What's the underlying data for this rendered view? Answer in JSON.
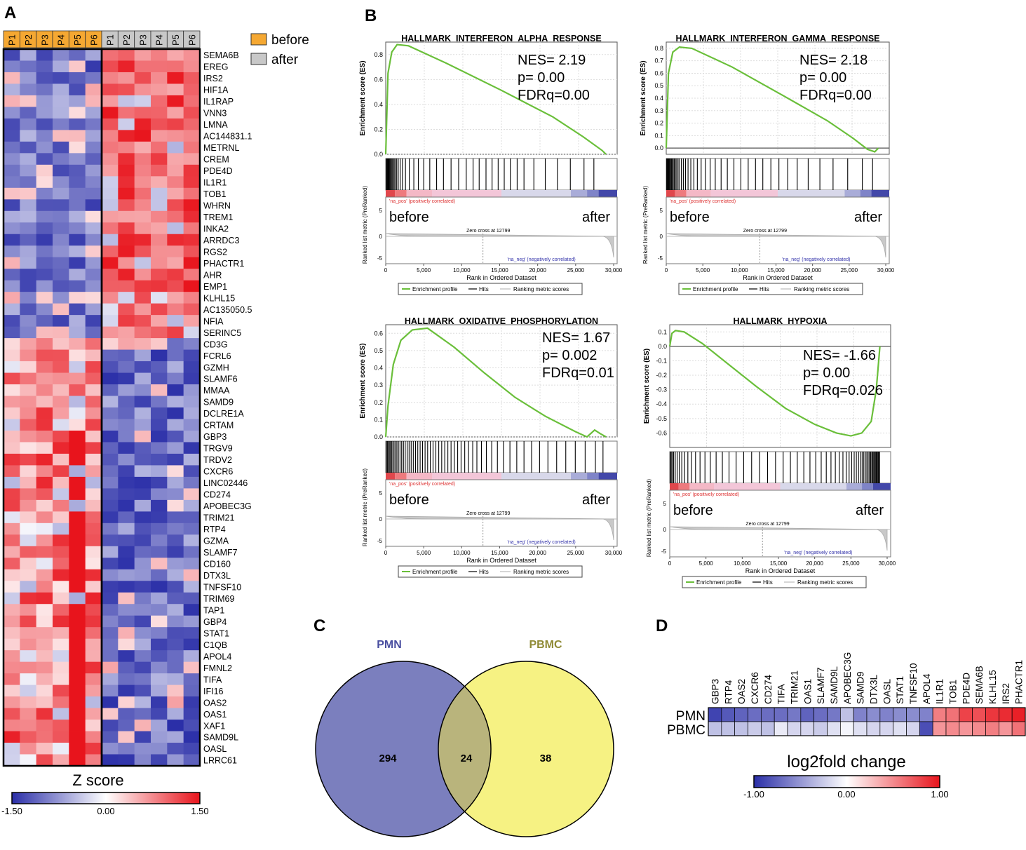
{
  "panel_labels": {
    "a": "A",
    "b": "B",
    "c": "C",
    "d": "D"
  },
  "colors": {
    "before": "#f5a832",
    "after": "#c8c8c8",
    "low": "#2b2fa8",
    "mid": "#ffffff",
    "high": "#e8141c",
    "gsea_line": "#6abf3a",
    "pmn": "#7b7fbe",
    "pbmc": "#f6f283",
    "overlap": "#b9b47c",
    "pmn_text": "#4a4fa0",
    "pbmc_text": "#8f8a35"
  },
  "chart_data": [
    {
      "type": "heatmap",
      "id": "A",
      "groups": [
        {
          "name": "before",
          "samples": [
            "P1",
            "P2",
            "P3",
            "P4",
            "P5",
            "P6"
          ]
        },
        {
          "name": "after",
          "samples": [
            "P1",
            "P2",
            "P3",
            "P4",
            "P5",
            "P6"
          ]
        }
      ],
      "legend_labels": [
        "before",
        "after"
      ],
      "genes": [
        "SEMA6B",
        "EREG",
        "IRS2",
        "HIF1A",
        "IL1RAP",
        "VNN3",
        "LMNA",
        "AC144831.1",
        "METRNL",
        "CREM",
        "PDE4D",
        "IL1R1",
        "TOB1",
        "WHRN",
        "TREM1",
        "INKA2",
        "ARRDC3",
        "RGS2",
        "PHACTR1",
        "AHR",
        "EMP1",
        "KLHL15",
        "AC135050.5",
        "NFIA",
        "SERINC5",
        "CD3G",
        "FCRL6",
        "GZMH",
        "SLAMF6",
        "MMAA",
        "SAMD9",
        "DCLRE1A",
        "CRTAM",
        "GBP3",
        "TRGV9",
        "TRDV2",
        "CXCR6",
        "LINC02446",
        "CD274",
        "APOBEC3G",
        "TRIM21",
        "RTP4",
        "GZMA",
        "SLAMF7",
        "CD160",
        "DTX3L",
        "TNFSF10",
        "TRIM69",
        "TAP1",
        "GBP4",
        "STAT1",
        "C1QB",
        "APOL4",
        "FMNL2",
        "TIFA",
        "IFI16",
        "OAS2",
        "OAS1",
        "XAF1",
        "SAMD9L",
        "OASL",
        "LRRC61"
      ],
      "n_up_after": 25,
      "colorbar": {
        "title": "Z score",
        "min": -1.5,
        "max": 1.5,
        "ticks": [
          "-1.50",
          "0.00",
          "1.50"
        ]
      }
    },
    {
      "type": "line",
      "id": "B1",
      "title": "HALLMARK_INTERFERON_ALPHA_RESPONSE",
      "stats": [
        "NES= 2.19",
        "p= 0.00",
        "FDRq=0.00"
      ],
      "ylabel": "Enrichment score (ES)",
      "ylim": [
        0,
        0.9
      ],
      "yticks": [
        "0.0",
        "0.2",
        "0.4",
        "0.6",
        "0.8"
      ],
      "curve": {
        "x": [
          0,
          300,
          800,
          1500,
          3000,
          8000,
          15000,
          22000,
          26000,
          28500,
          29000
        ],
        "y": [
          0,
          0.65,
          0.82,
          0.88,
          0.87,
          0.73,
          0.52,
          0.3,
          0.14,
          0.03,
          0.0
        ]
      },
      "hits": [
        80,
        160,
        240,
        330,
        420,
        520,
        620,
        730,
        850,
        980,
        1120,
        1280,
        1450,
        1650,
        1900,
        2200,
        2600,
        3100,
        3700,
        4300,
        5000,
        5800,
        6700,
        7600,
        8600,
        9600,
        10600,
        11500,
        12300,
        13200,
        14000,
        14800,
        15600,
        16400,
        17300,
        18200,
        19500,
        21000,
        22600,
        24300,
        26100,
        27400
      ],
      "zero_cross": "Zero cross at 12799"
    },
    {
      "type": "line",
      "id": "B2",
      "title": "HALLMARK_INTERFERON_GAMMA_RESPONSE",
      "stats": [
        "NES= 2.18",
        "p= 0.00",
        "FDRq=0.00"
      ],
      "ylabel": "Enrichment score (ES)",
      "ylim": [
        -0.05,
        0.85
      ],
      "yticks": [
        "0.0",
        "0.1",
        "0.2",
        "0.3",
        "0.4",
        "0.5",
        "0.6",
        "0.7",
        "0.8"
      ],
      "curve": {
        "x": [
          0,
          300,
          900,
          1800,
          3500,
          9000,
          16000,
          22000,
          25500,
          27500,
          28500,
          29000
        ],
        "y": [
          0,
          0.6,
          0.77,
          0.81,
          0.8,
          0.65,
          0.42,
          0.22,
          0.08,
          -0.01,
          -0.03,
          0.0
        ]
      },
      "hits": [
        60,
        130,
        210,
        300,
        390,
        490,
        600,
        710,
        830,
        960,
        1100,
        1260,
        1430,
        1620,
        1830,
        2070,
        2340,
        2640,
        2980,
        3360,
        3780,
        4250,
        4770,
        5350,
        6000,
        6700,
        7500,
        8350,
        9250,
        10200,
        11200,
        12200,
        13200,
        14300,
        15400,
        16600,
        17900,
        19400,
        21000,
        22800,
        24800,
        26800,
        28200
      ],
      "zero_cross": "Zero cross at 12799"
    },
    {
      "type": "line",
      "id": "B3",
      "title": "HALLMARK_OXIDATIVE_PHOSPHORYLATION",
      "stats": [
        "NES= 1.67",
        "p= 0.002",
        "FDRq=0.01"
      ],
      "ylabel": "Enrichment score (ES)",
      "ylim": [
        0,
        0.65
      ],
      "yticks": [
        "0.0",
        "0.1",
        "0.2",
        "0.3",
        "0.4",
        "0.5",
        "0.6"
      ],
      "curve": {
        "x": [
          0,
          300,
          1000,
          2000,
          3500,
          5500,
          9000,
          13000,
          17000,
          21000,
          25000,
          26500,
          27500,
          28200,
          29000
        ],
        "y": [
          0,
          0.18,
          0.42,
          0.56,
          0.62,
          0.63,
          0.52,
          0.37,
          0.23,
          0.12,
          0.03,
          0.0,
          0.04,
          0.02,
          0.0
        ]
      },
      "hits": [
        100,
        220,
        350,
        480,
        620,
        770,
        930,
        1100,
        1280,
        1470,
        1670,
        1880,
        2100,
        2330,
        2570,
        2820,
        3080,
        3350,
        3630,
        3920,
        4220,
        4530,
        4850,
        5180,
        5520,
        5870,
        6230,
        6600,
        6980,
        7370,
        7770,
        8180,
        8600,
        9030,
        9470,
        9920,
        10400,
        10900,
        11450,
        12000,
        12600,
        13250,
        13950,
        14700,
        15500,
        16350,
        17250,
        18200,
        19200,
        20250,
        21350,
        22500,
        23700,
        24950,
        26250,
        27600,
        28600
      ],
      "zero_cross": "Zero cross at 12799"
    },
    {
      "type": "line",
      "id": "B4",
      "title": "HALLMARK_HYPOXIA",
      "stats": [
        "NES= -1.66",
        "p= 0.00",
        "FDRq=0.026"
      ],
      "ylabel": "Enrichment score (ES)",
      "ylim": [
        -0.7,
        0.15
      ],
      "yticks": [
        "0.1",
        "0.0",
        "-0.1",
        "-0.2",
        "-0.3",
        "-0.4",
        "-0.5",
        "-0.6"
      ],
      "curve": {
        "x": [
          0,
          300,
          800,
          2000,
          4500,
          8000,
          12000,
          16000,
          20000,
          23000,
          25000,
          26500,
          27800,
          28500,
          29000
        ],
        "y": [
          0,
          0.09,
          0.11,
          0.1,
          0.02,
          -0.12,
          -0.28,
          -0.43,
          -0.54,
          -0.6,
          -0.62,
          -0.6,
          -0.52,
          -0.3,
          0.0
        ]
      },
      "hits": [
        90,
        210,
        360,
        540,
        760,
        1020,
        1320,
        1660,
        2050,
        2500,
        3000,
        3560,
        4180,
        4860,
        5600,
        6400,
        7260,
        8180,
        9160,
        10200,
        11300,
        12400,
        13500,
        14600,
        15650,
        16650,
        17600,
        18500,
        19350,
        20150,
        20900,
        21600,
        22250,
        22850,
        23400,
        23900,
        24350,
        24750,
        25100,
        25450,
        25750,
        26050,
        26300,
        26550,
        26780,
        27000,
        27200,
        27380,
        27560,
        27720,
        27870,
        28010,
        28140,
        28260,
        28380,
        28500,
        28620,
        28740,
        28850,
        28950
      ],
      "zero_cross": "Zero cross at 12799"
    },
    {
      "type": "venn",
      "id": "C",
      "sets": [
        "PMN",
        "PBMC"
      ],
      "values": {
        "PMN_only": 294,
        "overlap": 24,
        "PBMC_only": 38
      }
    },
    {
      "type": "heatmap",
      "id": "D",
      "rows": [
        "PMN",
        "PBMC"
      ],
      "columns": [
        "GBP3",
        "RTP4",
        "OAS2",
        "CXCR6",
        "CD274",
        "TIFA",
        "TRIM21",
        "OAS1",
        "SLAMF7",
        "SAMD9L",
        "APOBEC3G",
        "SAMD9",
        "DTX3L",
        "OASL",
        "STAT1",
        "TNFSF10",
        "APOL4",
        "IL1R1",
        "TOB1",
        "PDE4D",
        "SEMA6B",
        "KLHL15",
        "IRS2",
        "PHACTR1"
      ],
      "values": [
        [
          -0.9,
          -0.8,
          -0.75,
          -0.7,
          -0.7,
          -0.7,
          -0.65,
          -0.75,
          -0.7,
          -0.65,
          -0.3,
          -0.6,
          -0.55,
          -0.6,
          -0.55,
          -0.55,
          -0.6,
          0.55,
          0.6,
          0.8,
          0.75,
          0.85,
          0.9,
          0.95
        ],
        [
          -0.3,
          -0.3,
          -0.3,
          -0.25,
          -0.3,
          -0.1,
          -0.2,
          -0.2,
          -0.25,
          -0.15,
          -0.05,
          -0.15,
          -0.2,
          -0.2,
          -0.15,
          -0.2,
          -0.85,
          0.45,
          0.5,
          0.45,
          0.5,
          0.55,
          0.45,
          0.6
        ]
      ],
      "colorbar": {
        "title": "log2fold change",
        "min": -1,
        "max": 1,
        "ticks": [
          "-1.00",
          "0.00",
          "1.00"
        ]
      }
    }
  ],
  "gsea_common": {
    "metric_label": "Ranked list metric (PreRanked)",
    "xlabel": "Rank in Ordered Dataset",
    "xticks": [
      "0",
      "5,000",
      "10,000",
      "15,000",
      "20,000",
      "25,000",
      "30,000"
    ],
    "metric_yticks": [
      "5",
      "0",
      "-5"
    ],
    "pos_label": "'na_pos' (positively correlated)",
    "neg_label": "'na_neg' (negatively correlated)",
    "before_label": "before",
    "after_label": "after",
    "legend": [
      "Enrichment profile",
      "Hits",
      "Ranking metric scores"
    ]
  }
}
